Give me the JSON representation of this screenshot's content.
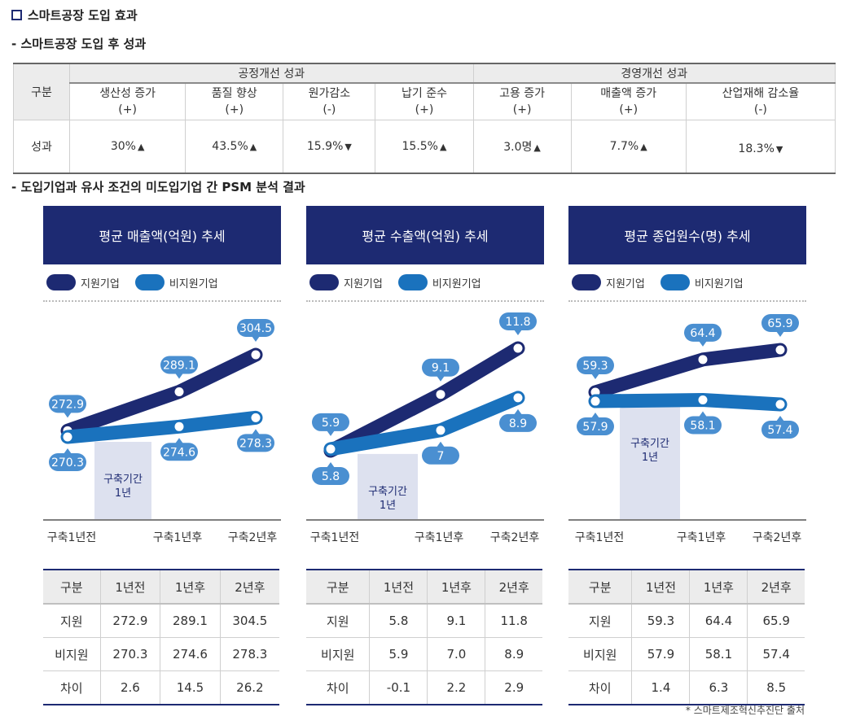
{
  "title": "스마트공장 도입 효과",
  "section1_title": "스마트공장 도입 후 성과",
  "section2_title": "도입기업과 유사 조건의 미도입기업 간 PSM 분석 결과",
  "colors": {
    "navy": "#1d2a72",
    "blue": "#1a72bd",
    "label_blue": "#4a8fd1",
    "shade": "#dde1ef"
  },
  "perf_table": {
    "row_header": "구분",
    "groups": [
      "공정개선 성과",
      "경영개선 성과"
    ],
    "columns": [
      {
        "name": "생산성 증가",
        "sign": "(+)",
        "value": "30%",
        "arrow": "▲"
      },
      {
        "name": "품질 향상",
        "sign": "(+)",
        "value": "43.5%",
        "arrow": "▲"
      },
      {
        "name": "원가감소",
        "sign": "(-)",
        "value": "15.9%",
        "arrow": "▼"
      },
      {
        "name": "납기 준수",
        "sign": "(+)",
        "value": "15.5%",
        "arrow": "▲"
      },
      {
        "name": "고용 증가",
        "sign": "(+)",
        "value": "3.0명",
        "arrow": "▲"
      },
      {
        "name": "매출액 증가",
        "sign": "(+)",
        "value": "7.7%",
        "arrow": "▲"
      },
      {
        "name": "산업재해 감소율",
        "sign": "(-)",
        "value": "18.3%",
        "arrow": "▼"
      }
    ],
    "result_label": "성과"
  },
  "legend": {
    "supported": "지원기업",
    "unsupported": "비지원기업"
  },
  "build_period": [
    "구축기간",
    "1년"
  ],
  "chart_data": [
    {
      "type": "line",
      "title": "평균 매출액(억원) 추세",
      "categories": [
        "구축1년전",
        "구축1년후",
        "구축2년후"
      ],
      "series": [
        {
          "name": "지원기업",
          "values": [
            272.9,
            289.1,
            304.5
          ]
        },
        {
          "name": "비지원기업",
          "values": [
            270.3,
            274.6,
            278.3
          ]
        }
      ],
      "table": {
        "header": [
          "구분",
          "1년전",
          "1년후",
          "2년후"
        ],
        "rows": [
          [
            "지원",
            "272.9",
            "289.1",
            "304.5"
          ],
          [
            "비지원",
            "270.3",
            "274.6",
            "278.3"
          ],
          [
            "차이",
            "2.6",
            "14.5",
            "26.2"
          ]
        ]
      }
    },
    {
      "type": "line",
      "title": "평균 수출액(억원) 추세",
      "categories": [
        "구축1년전",
        "구축1년후",
        "구축2년후"
      ],
      "series": [
        {
          "name": "지원기업",
          "values": [
            5.8,
            9.1,
            11.8
          ]
        },
        {
          "name": "비지원기업",
          "values": [
            5.9,
            7.0,
            8.9
          ]
        }
      ],
      "table": {
        "header": [
          "구분",
          "1년전",
          "1년후",
          "2년후"
        ],
        "rows": [
          [
            "지원",
            "5.8",
            "9.1",
            "11.8"
          ],
          [
            "비지원",
            "5.9",
            "7.0",
            "8.9"
          ],
          [
            "차이",
            "-0.1",
            "2.2",
            "2.9"
          ]
        ]
      }
    },
    {
      "type": "line",
      "title": "평균 종업원수(명) 추세",
      "categories": [
        "구축1년전",
        "구축1년후",
        "구축2년후"
      ],
      "series": [
        {
          "name": "지원기업",
          "values": [
            59.3,
            64.4,
            65.9
          ]
        },
        {
          "name": "비지원기업",
          "values": [
            57.9,
            58.1,
            57.4
          ]
        }
      ],
      "table": {
        "header": [
          "구분",
          "1년전",
          "1년후",
          "2년후"
        ],
        "rows": [
          [
            "지원",
            "59.3",
            "64.4",
            "65.9"
          ],
          [
            "비지원",
            "57.9",
            "58.1",
            "57.4"
          ],
          [
            "차이",
            "1.4",
            "6.3",
            "8.5"
          ]
        ]
      }
    }
  ],
  "source_note": "* 스마트제조혁신추진단 출처"
}
